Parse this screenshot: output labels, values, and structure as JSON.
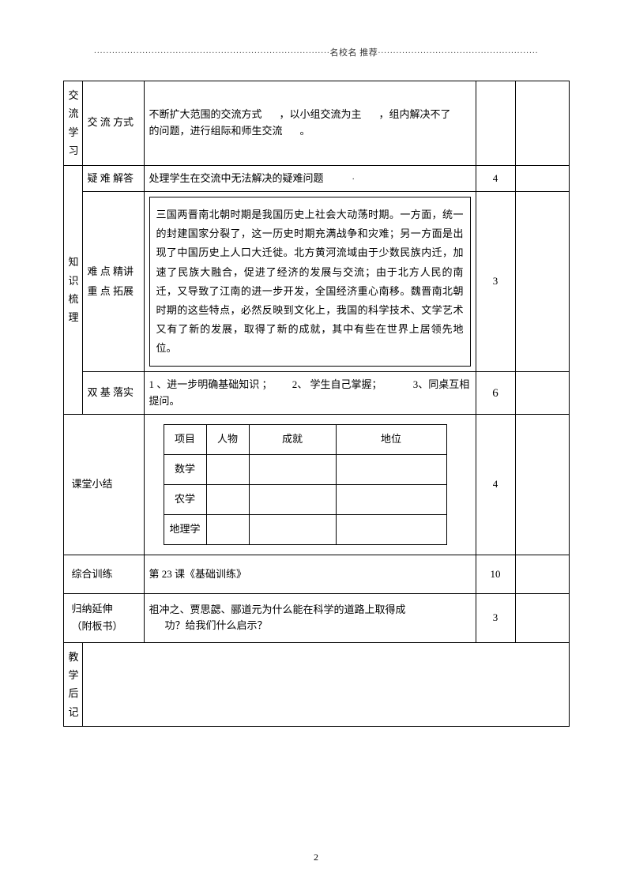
{
  "header": {
    "left_dots": "··············································································",
    "title": "名校名 推荐",
    "right_dots": "·····················································"
  },
  "rows": {
    "r1": {
      "side": "交流学习",
      "label": "交 流 方式",
      "content_a": "不断扩大范围的交流方式",
      "content_b": "，以小组交流为主",
      "content_c": "，组内解决不了",
      "content_d": "的问题，进行组际和师生交流",
      "content_e": "。"
    },
    "r2": {
      "side": "知识梳理",
      "label": "疑 难 解答",
      "content": "处理学生在交流中无法解决的疑难问题",
      "dot": "·",
      "time": "4"
    },
    "r3": {
      "label_a": "难 点 精讲",
      "label_b": "重 点 拓展",
      "content": "三国两晋南北朝时期是我国历史上社会大动荡时期。一方面，统一的封建国家分裂了，这一历史时期充满战争和灾难；另一方面是出现了中国历史上人口大迁徙。北方黄河流域由于少数民族内迁，加速了民族大融合，促进了经济的发展与交流；由于北方人民的南迁，又导致了江南的进一步开发，全国经济重心南移。魏晋南北朝时期的这些特点，必然反映到文化上，我国的科学技术、文学艺术又有了新的发展，取得了新的成就，其中有些在世界上居领先地位。",
      "time": "3"
    },
    "r4": {
      "label": "双 基 落实",
      "content_a": "1 、进一步明确基础知识 ；",
      "content_b": "2、 学生自己掌握；",
      "content_c": "3、同桌互相",
      "content_d": "提问。",
      "time": "6"
    },
    "r5": {
      "label": "课堂小结",
      "headers": {
        "c1": "项目",
        "c2": "人物",
        "c3": "成就",
        "c4": "地位"
      },
      "subjects": {
        "s1": "数学",
        "s2": "农学",
        "s3": "地理学"
      },
      "time": "4"
    },
    "r6": {
      "label": "综合训练",
      "content": "第 23 课《基础训练》",
      "time": "10"
    },
    "r7": {
      "label_a": "归纳延伸",
      "label_b": "（附板书）",
      "content_a": "祖冲之、贾思勰、郦道元为什么能在科学的道路上取得成",
      "content_b": "功？给我们什么启示？",
      "time": "3"
    },
    "r8": {
      "side": "教学后记"
    }
  },
  "page_number": "2"
}
